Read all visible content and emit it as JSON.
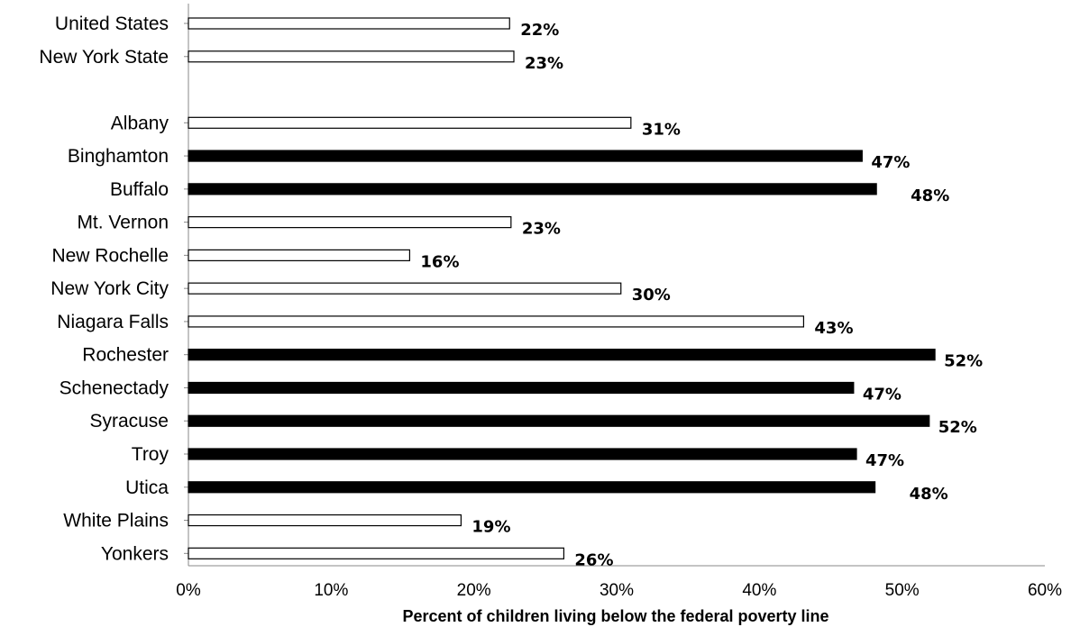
{
  "chart_data": {
    "type": "bar",
    "orientation": "horizontal",
    "title": "",
    "xlabel": "Percent of children living below the federal poverty line",
    "ylabel": "",
    "xlim": [
      0,
      60
    ],
    "x_ticks": [
      "0%",
      "10%",
      "20%",
      "30%",
      "40%",
      "50%",
      "60%"
    ],
    "grid": false,
    "legend": "none",
    "colors": {
      "highlight": "#000000",
      "default": "#ffffff",
      "stroke": "#000000"
    },
    "categories": [
      "United States",
      "New York State",
      "",
      "Albany",
      "Binghamton",
      "Buffalo",
      "Mt. Vernon",
      "New Rochelle",
      "New York City",
      "Niagara Falls",
      "Rochester",
      "Schenectady",
      "Syracuse",
      "Troy",
      "Utica",
      "White Plains",
      "Yonkers"
    ],
    "values": [
      22.5,
      22.8,
      null,
      31,
      47.2,
      48.2,
      22.6,
      15.5,
      30.3,
      43.1,
      52.3,
      46.6,
      51.9,
      46.8,
      48.1,
      19.1,
      26.3
    ],
    "value_labels": [
      "22%",
      "23%",
      "",
      "31%",
      "47%",
      "48%",
      "23%",
      "16%",
      "30%",
      "43%",
      "52%",
      "47%",
      "52%",
      "47%",
      "48%",
      "19%",
      "26%"
    ],
    "highlighted": [
      false,
      false,
      false,
      false,
      true,
      true,
      false,
      false,
      false,
      false,
      true,
      true,
      true,
      true,
      true,
      false,
      false
    ]
  }
}
